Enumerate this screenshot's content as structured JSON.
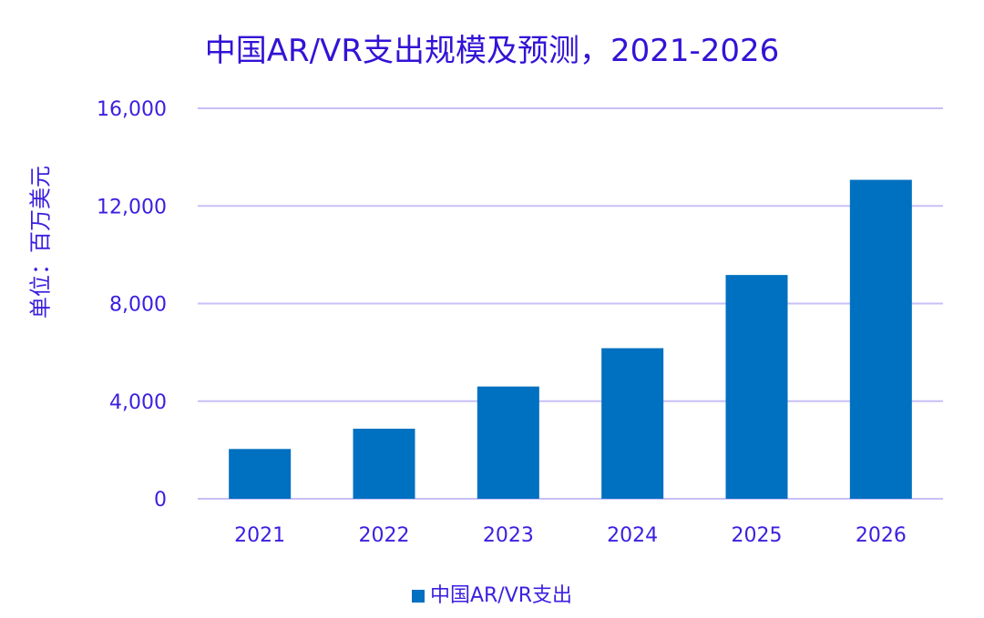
{
  "chart_data": {
    "type": "bar",
    "title": "中国AR/VR支出规模及预测，2021-2026",
    "ylabel": "单位：百万美元",
    "xlabel": "",
    "categories": [
      "2021",
      "2022",
      "2023",
      "2024",
      "2025",
      "2026"
    ],
    "series": [
      {
        "name": "中国AR/VR支出",
        "values": [
          2040,
          2870,
          4600,
          6170,
          9170,
          13070
        ],
        "color": "#0070c0"
      }
    ],
    "ylim": [
      0,
      16000
    ],
    "yticks": [
      0,
      4000,
      8000,
      12000,
      16000
    ],
    "ytick_labels": [
      "0",
      "4,000",
      "8,000",
      "12,000",
      "16,000"
    ],
    "grid": true,
    "grid_color": "#c7bff7",
    "text_color": "#3b1fe0",
    "legend_position": "bottom"
  }
}
